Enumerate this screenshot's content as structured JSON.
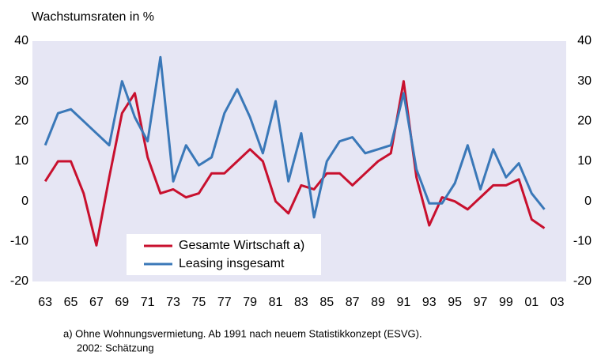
{
  "chart_data": {
    "type": "line",
    "title": "Wachstumsraten in %",
    "x": [
      1963,
      1964,
      1965,
      1966,
      1967,
      1968,
      1969,
      1970,
      1971,
      1972,
      1973,
      1974,
      1975,
      1976,
      1977,
      1978,
      1979,
      1980,
      1981,
      1982,
      1983,
      1984,
      1985,
      1986,
      1987,
      1988,
      1989,
      1990,
      1991,
      1992,
      1993,
      1994,
      1995,
      1996,
      1997,
      1998,
      1999,
      2000,
      2001,
      2002
    ],
    "series": [
      {
        "name": "Gesamte Wirtschaft a)",
        "color": "#c8102e",
        "values": [
          5,
          10,
          10,
          2,
          -11,
          6,
          22,
          27,
          11,
          2,
          3,
          1,
          2,
          7,
          7,
          10,
          13,
          10,
          0,
          -3,
          4,
          3,
          7,
          7,
          4,
          7,
          10,
          12,
          30,
          6,
          -6,
          1,
          0,
          -2,
          1,
          4,
          4,
          5.5,
          -4.5,
          -6.7
        ]
      },
      {
        "name": "Leasing insgesamt",
        "color": "#3a78b8",
        "values": [
          14,
          22,
          23,
          20,
          17,
          14,
          30,
          21,
          15,
          36,
          5,
          14,
          9,
          11,
          22,
          28,
          21,
          12,
          25,
          5,
          17,
          -4,
          10,
          15,
          16,
          12,
          13,
          14,
          27,
          8,
          -0.5,
          -0.5,
          4.5,
          14,
          3,
          13,
          6,
          9.5,
          2,
          -2
        ]
      }
    ],
    "xlim": [
      1962,
      2003.7
    ],
    "xticks": [
      {
        "value": 1963,
        "label": "63"
      },
      {
        "value": 1965,
        "label": "65"
      },
      {
        "value": 1967,
        "label": "67"
      },
      {
        "value": 1969,
        "label": "69"
      },
      {
        "value": 1971,
        "label": "71"
      },
      {
        "value": 1973,
        "label": "73"
      },
      {
        "value": 1975,
        "label": "75"
      },
      {
        "value": 1977,
        "label": "77"
      },
      {
        "value": 1979,
        "label": "79"
      },
      {
        "value": 1981,
        "label": "81"
      },
      {
        "value": 1983,
        "label": "83"
      },
      {
        "value": 1985,
        "label": "85"
      },
      {
        "value": 1987,
        "label": "87"
      },
      {
        "value": 1989,
        "label": "89"
      },
      {
        "value": 1991,
        "label": "91"
      },
      {
        "value": 1993,
        "label": "93"
      },
      {
        "value": 1995,
        "label": "95"
      },
      {
        "value": 1997,
        "label": "97"
      },
      {
        "value": 1999,
        "label": "99"
      },
      {
        "value": 2001,
        "label": "01"
      },
      {
        "value": 2003,
        "label": "03"
      }
    ],
    "ylim": [
      -20,
      40
    ],
    "yticks": [
      -20,
      -10,
      0,
      10,
      20,
      30,
      40
    ],
    "y2lim": [
      -20,
      40
    ],
    "y2ticks": [
      -20,
      -10,
      0,
      10,
      20,
      30,
      40
    ],
    "grid": false,
    "legend": "lower left",
    "footnote": [
      "a) Ohne Wohnungsvermietung. Ab 1991 nach neuem Statistikkonzept (ESVG).",
      "2002: Schätzung"
    ]
  }
}
